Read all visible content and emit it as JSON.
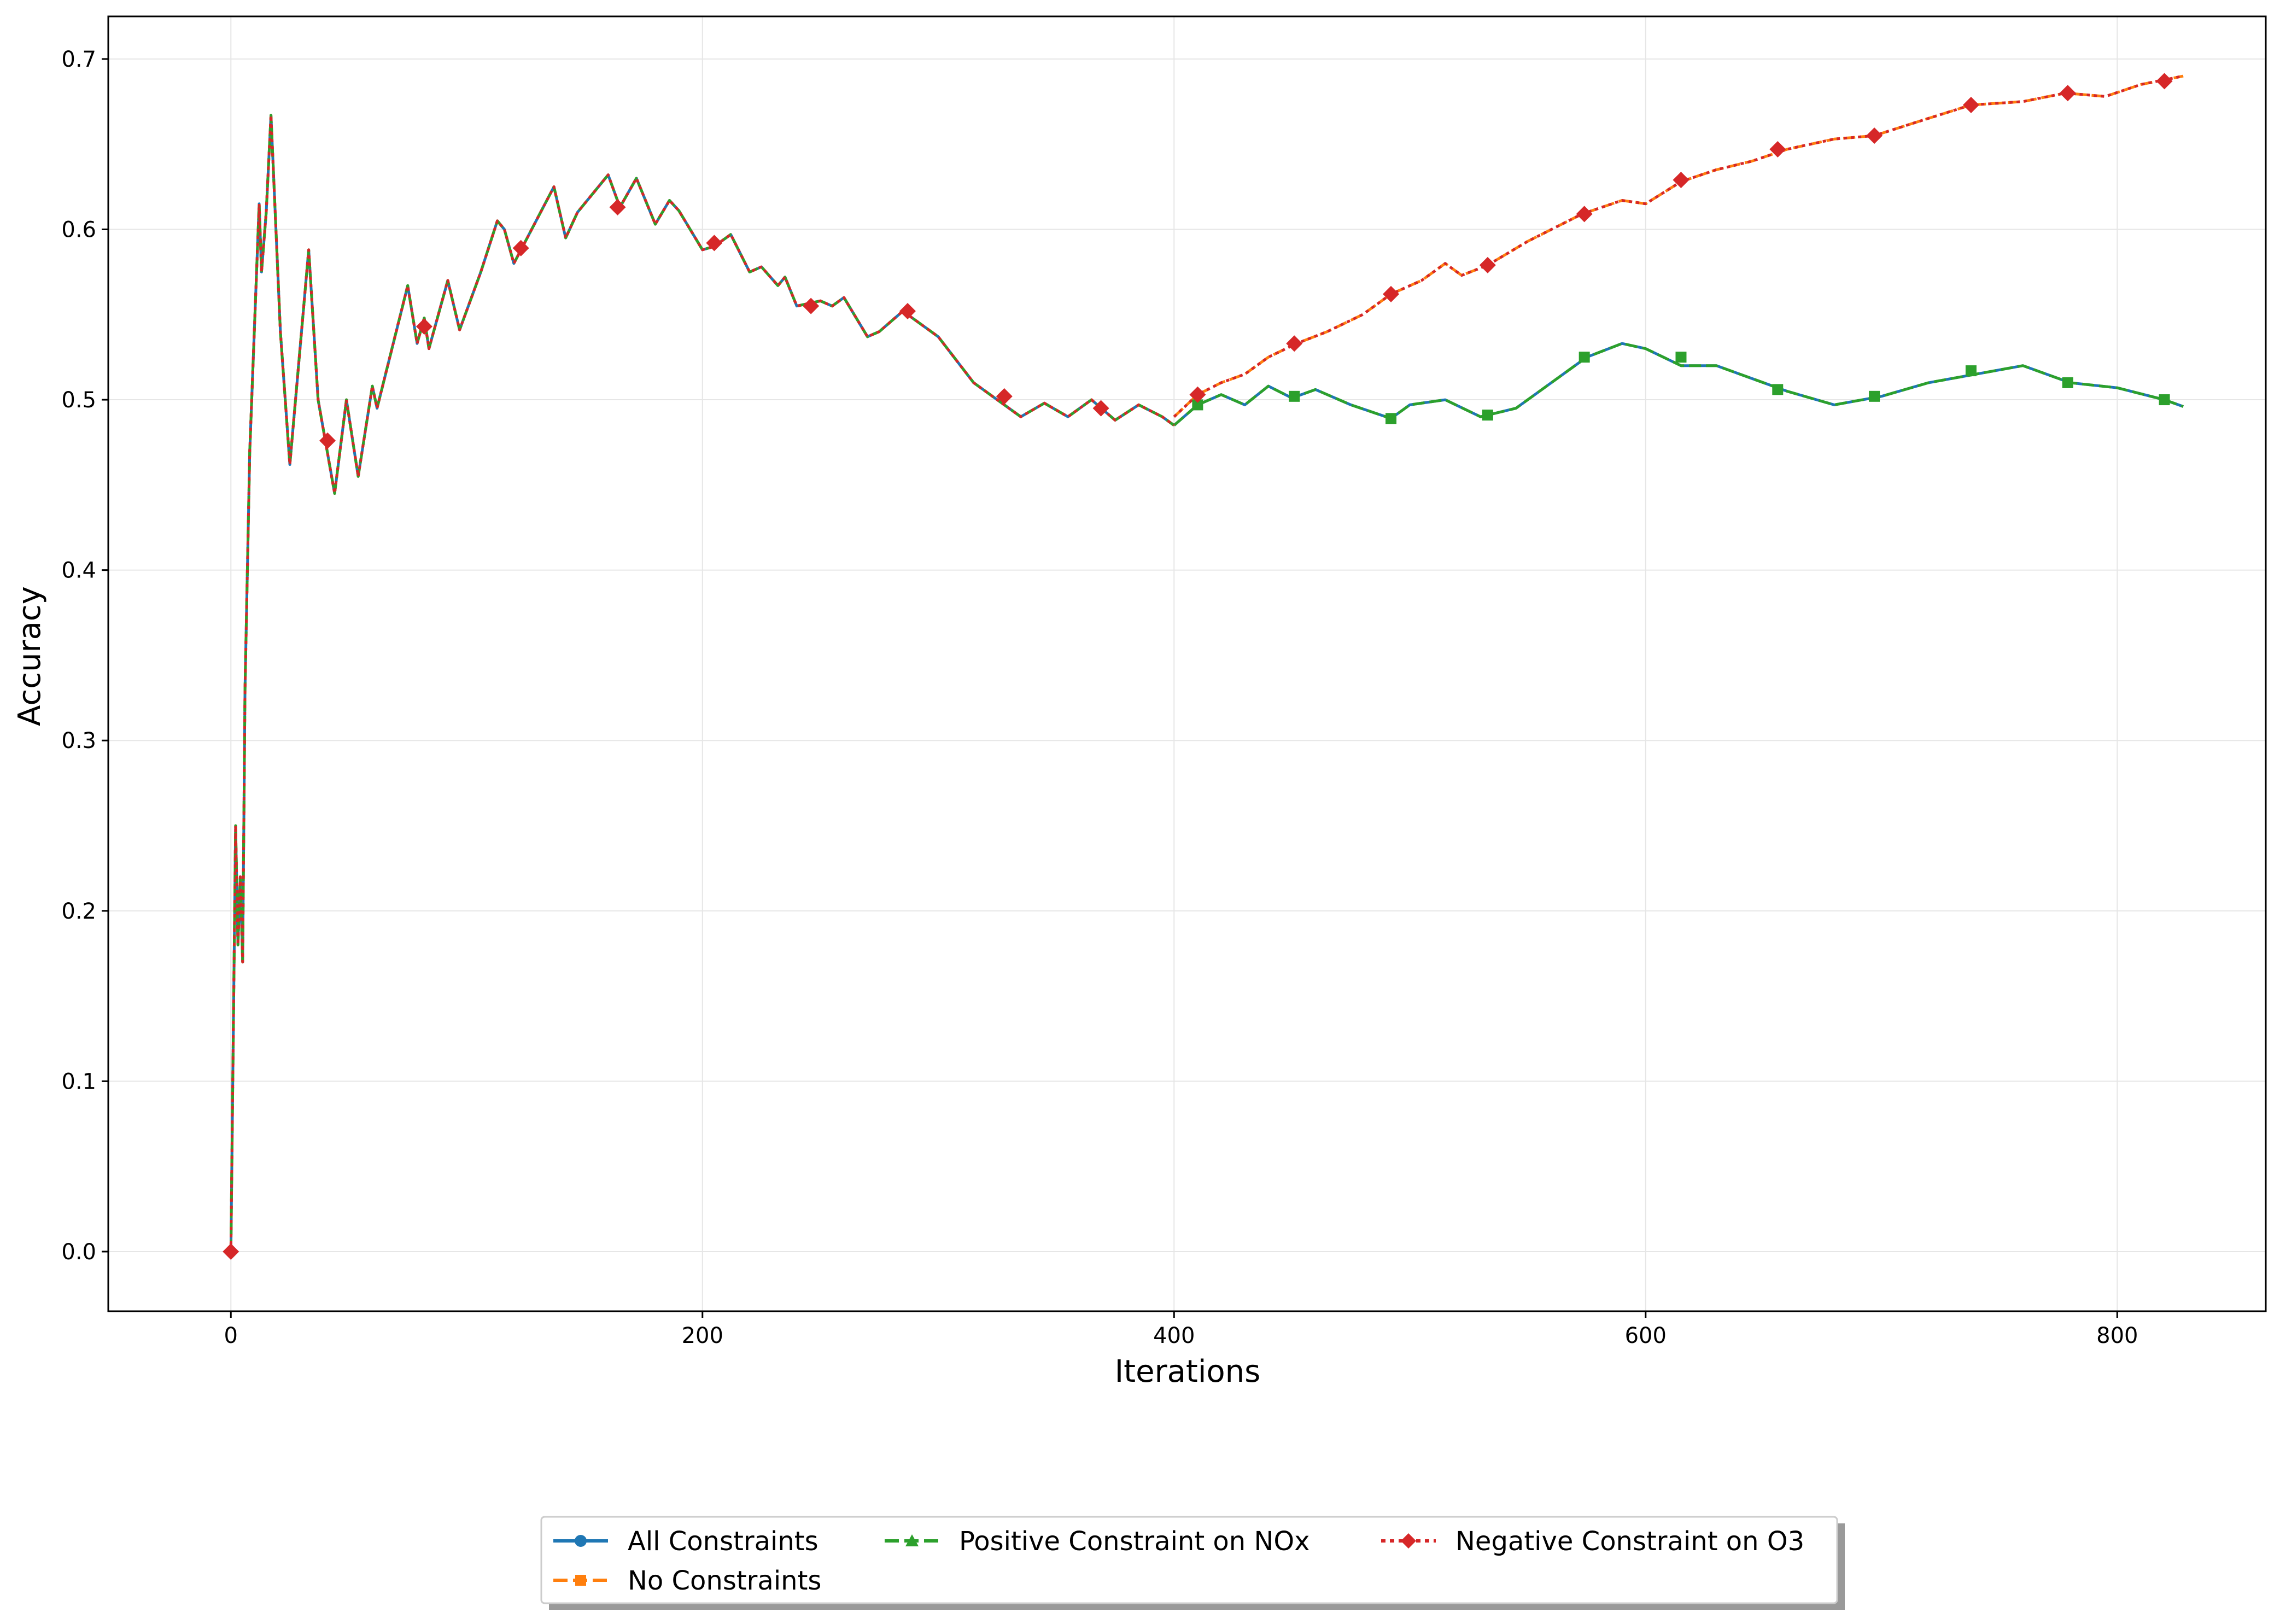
{
  "chart_data": {
    "type": "line",
    "title": "",
    "xlabel": "Iterations",
    "ylabel": "Accuracy",
    "xlim": [
      -52,
      863
    ],
    "ylim": [
      -0.035,
      0.725
    ],
    "x_ticks": [
      0,
      200,
      400,
      600,
      800
    ],
    "y_ticks": [
      0.0,
      0.1,
      0.2,
      0.3,
      0.4,
      0.5,
      0.6,
      0.7
    ],
    "x_tick_labels": [
      "0",
      "200",
      "400",
      "600",
      "800"
    ],
    "y_tick_labels": [
      "0.0",
      "0.1",
      "0.2",
      "0.3",
      "0.4",
      "0.5",
      "0.6",
      "0.7"
    ],
    "grid": true,
    "legend_position": "bottom-center, below plot",
    "shared_prefix": {
      "x": [
        0,
        2,
        3,
        4,
        5,
        6,
        8,
        12,
        13,
        15,
        17,
        21,
        25,
        33,
        37,
        44,
        49,
        54,
        60,
        62,
        75,
        79,
        82,
        84,
        92,
        97,
        106,
        113,
        116,
        120,
        137,
        142,
        147,
        160,
        165,
        172,
        180,
        186,
        190,
        200,
        205,
        212,
        220,
        225,
        232,
        235,
        240,
        250,
        255,
        260,
        270,
        275,
        285,
        300,
        315,
        335,
        345,
        355,
        365,
        375,
        385,
        395,
        400
      ],
      "y": [
        0.0,
        0.25,
        0.18,
        0.22,
        0.17,
        0.33,
        0.47,
        0.615,
        0.575,
        0.61,
        0.667,
        0.54,
        0.462,
        0.588,
        0.5,
        0.445,
        0.5,
        0.455,
        0.508,
        0.495,
        0.567,
        0.533,
        0.548,
        0.53,
        0.57,
        0.541,
        0.575,
        0.605,
        0.6,
        0.58,
        0.625,
        0.595,
        0.61,
        0.632,
        0.613,
        0.63,
        0.603,
        0.617,
        0.611,
        0.588,
        0.59,
        0.597,
        0.575,
        0.578,
        0.567,
        0.572,
        0.555,
        0.558,
        0.555,
        0.56,
        0.537,
        0.54,
        0.552,
        0.537,
        0.51,
        0.49,
        0.498,
        0.49,
        0.5,
        0.488,
        0.497,
        0.49,
        0.485
      ]
    },
    "series": [
      {
        "name": "All Constraints",
        "color": "#1f77b4",
        "marker": "circle",
        "linestyle": "solid",
        "x": [
          400,
          410,
          420,
          430,
          440,
          450,
          460,
          475,
          492,
          500,
          515,
          530,
          545,
          560,
          575,
          590,
          600,
          615,
          630,
          660,
          680,
          700,
          720,
          740,
          760,
          780,
          800,
          820,
          828
        ],
        "y": [
          0.485,
          0.497,
          0.503,
          0.497,
          0.508,
          0.501,
          0.506,
          0.497,
          0.489,
          0.497,
          0.5,
          0.49,
          0.495,
          0.51,
          0.525,
          0.533,
          0.53,
          0.52,
          0.52,
          0.505,
          0.497,
          0.502,
          0.51,
          0.515,
          0.52,
          0.51,
          0.507,
          0.5,
          0.496
        ]
      },
      {
        "name": "No Constraints",
        "color": "#ff7f0e",
        "marker": "square",
        "linestyle": "dashed",
        "x": [
          400,
          410,
          420,
          430,
          440,
          452,
          465,
          480,
          492,
          505,
          515,
          522,
          533,
          550,
          573,
          590,
          600,
          615,
          630,
          645,
          660,
          680,
          697,
          715,
          738,
          760,
          778,
          795,
          810,
          828
        ],
        "y": [
          0.49,
          0.503,
          0.51,
          0.515,
          0.525,
          0.533,
          0.54,
          0.55,
          0.562,
          0.57,
          0.58,
          0.573,
          0.579,
          0.593,
          0.609,
          0.617,
          0.615,
          0.628,
          0.635,
          0.64,
          0.647,
          0.653,
          0.655,
          0.663,
          0.673,
          0.675,
          0.68,
          0.678,
          0.685,
          0.69
        ]
      },
      {
        "name": "Positive Constraint on NOx",
        "color": "#2ca02c",
        "marker": "triangle",
        "linestyle": "dashed",
        "x": [
          400,
          410,
          420,
          430,
          440,
          450,
          460,
          475,
          492,
          500,
          515,
          530,
          545,
          560,
          575,
          590,
          600,
          615,
          630,
          660,
          680,
          700,
          720,
          740,
          760,
          780,
          800,
          820,
          828
        ],
        "y": [
          0.485,
          0.497,
          0.503,
          0.497,
          0.508,
          0.501,
          0.506,
          0.497,
          0.489,
          0.497,
          0.5,
          0.49,
          0.495,
          0.51,
          0.525,
          0.533,
          0.53,
          0.52,
          0.52,
          0.505,
          0.497,
          0.502,
          0.51,
          0.515,
          0.52,
          0.51,
          0.507,
          0.5,
          0.496
        ]
      },
      {
        "name": "Negative Constraint on O3",
        "color": "#d62728",
        "marker": "diamond",
        "linestyle": "dotted",
        "x": [
          400,
          410,
          420,
          430,
          440,
          452,
          465,
          480,
          492,
          505,
          515,
          522,
          533,
          550,
          573,
          590,
          600,
          615,
          630,
          645,
          660,
          680,
          697,
          715,
          738,
          760,
          778,
          795,
          810,
          828
        ],
        "y": [
          0.49,
          0.503,
          0.51,
          0.515,
          0.525,
          0.533,
          0.54,
          0.55,
          0.562,
          0.57,
          0.58,
          0.573,
          0.579,
          0.593,
          0.609,
          0.617,
          0.615,
          0.628,
          0.635,
          0.64,
          0.647,
          0.653,
          0.655,
          0.663,
          0.673,
          0.675,
          0.68,
          0.678,
          0.685,
          0.69
        ]
      }
    ],
    "markers": {
      "shared_red": {
        "x": [
          0,
          41,
          82,
          123,
          164,
          205,
          246,
          287,
          328,
          369
        ],
        "y": [
          0.0,
          0.476,
          0.543,
          0.589,
          0.613,
          0.592,
          0.555,
          0.552,
          0.502,
          0.495
        ]
      },
      "green_only": {
        "x": [
          410,
          451,
          492,
          533,
          574,
          615,
          656,
          697,
          738,
          779,
          820
        ],
        "y": [
          0.497,
          0.502,
          0.489,
          0.491,
          0.525,
          0.525,
          0.506,
          0.502,
          0.517,
          0.51,
          0.5
        ]
      },
      "red_only": {
        "x": [
          410,
          451,
          492,
          533,
          574,
          615,
          656,
          697,
          738,
          779,
          820
        ],
        "y": [
          0.503,
          0.533,
          0.562,
          0.579,
          0.609,
          0.629,
          0.647,
          0.655,
          0.673,
          0.68,
          0.687
        ]
      }
    }
  }
}
